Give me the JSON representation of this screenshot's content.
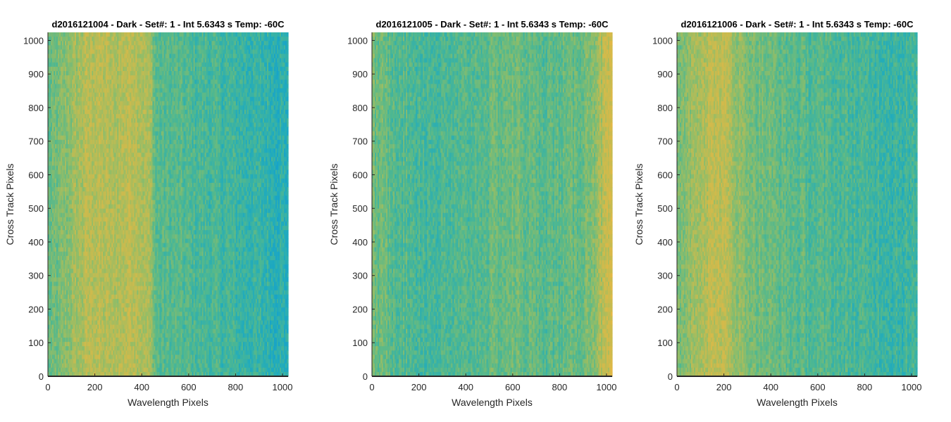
{
  "chart_data": [
    {
      "type": "heatmap",
      "title": "d2016121004 - Dark - Set#: 1 - Int 5.6343 s Temp: -60C",
      "xlabel": "Wavelength Pixels",
      "ylabel": "Cross Track Pixels",
      "xlim": [
        0,
        1024
      ],
      "ylim": [
        0,
        1024
      ],
      "xticks": [
        0,
        200,
        400,
        600,
        800,
        1000
      ],
      "yticks": [
        0,
        100,
        200,
        300,
        400,
        500,
        600,
        700,
        800,
        900,
        1000
      ],
      "colormap": [
        "#0f9bd5",
        "#22acbb",
        "#51b88f",
        "#8fbd69",
        "#c8bb4f",
        "#e3b845"
      ],
      "column_intensity": {
        "x": [
          0,
          40,
          80,
          120,
          160,
          200,
          240,
          280,
          320,
          360,
          400,
          440,
          460,
          500,
          560,
          620,
          700,
          780,
          860,
          920,
          980,
          1024
        ],
        "level": [
          0.45,
          0.5,
          0.58,
          0.65,
          0.72,
          0.75,
          0.72,
          0.7,
          0.74,
          0.78,
          0.72,
          0.65,
          0.42,
          0.42,
          0.4,
          0.38,
          0.36,
          0.33,
          0.3,
          0.28,
          0.25,
          0.24
        ]
      }
    },
    {
      "type": "heatmap",
      "title": "d2016121005 - Dark - Set#: 1 - Int 5.6343 s Temp: -60C",
      "xlabel": "Wavelength Pixels",
      "ylabel": "Cross Track Pixels",
      "xlim": [
        0,
        1024
      ],
      "ylim": [
        0,
        1024
      ],
      "xticks": [
        0,
        200,
        400,
        600,
        800,
        1000
      ],
      "yticks": [
        0,
        100,
        200,
        300,
        400,
        500,
        600,
        700,
        800,
        900,
        1000
      ],
      "colormap": [
        "#0f9bd5",
        "#22acbb",
        "#51b88f",
        "#8fbd69",
        "#c8bb4f",
        "#e3b845"
      ],
      "column_intensity": {
        "x": [
          0,
          60,
          120,
          200,
          280,
          360,
          440,
          520,
          600,
          680,
          760,
          840,
          900,
          940,
          980,
          1024
        ],
        "level": [
          0.5,
          0.47,
          0.42,
          0.38,
          0.36,
          0.37,
          0.42,
          0.46,
          0.5,
          0.45,
          0.43,
          0.45,
          0.5,
          0.58,
          0.72,
          0.85
        ]
      }
    },
    {
      "type": "heatmap",
      "title": "d2016121006 - Dark - Set#: 1 - Int 5.6343 s Temp: -60C",
      "xlabel": "Wavelength Pixels",
      "ylabel": "Cross Track Pixels",
      "xlim": [
        0,
        1024
      ],
      "ylim": [
        0,
        1024
      ],
      "xticks": [
        0,
        200,
        400,
        600,
        800,
        1000
      ],
      "yticks": [
        0,
        100,
        200,
        300,
        400,
        500,
        600,
        700,
        800,
        900,
        1000
      ],
      "colormap": [
        "#0f9bd5",
        "#22acbb",
        "#51b88f",
        "#8fbd69",
        "#c8bb4f",
        "#e3b845"
      ],
      "column_intensity": {
        "x": [
          0,
          40,
          80,
          120,
          160,
          200,
          240,
          280,
          320,
          360,
          440,
          520,
          600,
          700,
          800,
          900,
          1000,
          1024
        ],
        "level": [
          0.5,
          0.6,
          0.68,
          0.74,
          0.78,
          0.76,
          0.66,
          0.58,
          0.54,
          0.5,
          0.46,
          0.42,
          0.4,
          0.38,
          0.35,
          0.33,
          0.32,
          0.32
        ]
      }
    }
  ]
}
